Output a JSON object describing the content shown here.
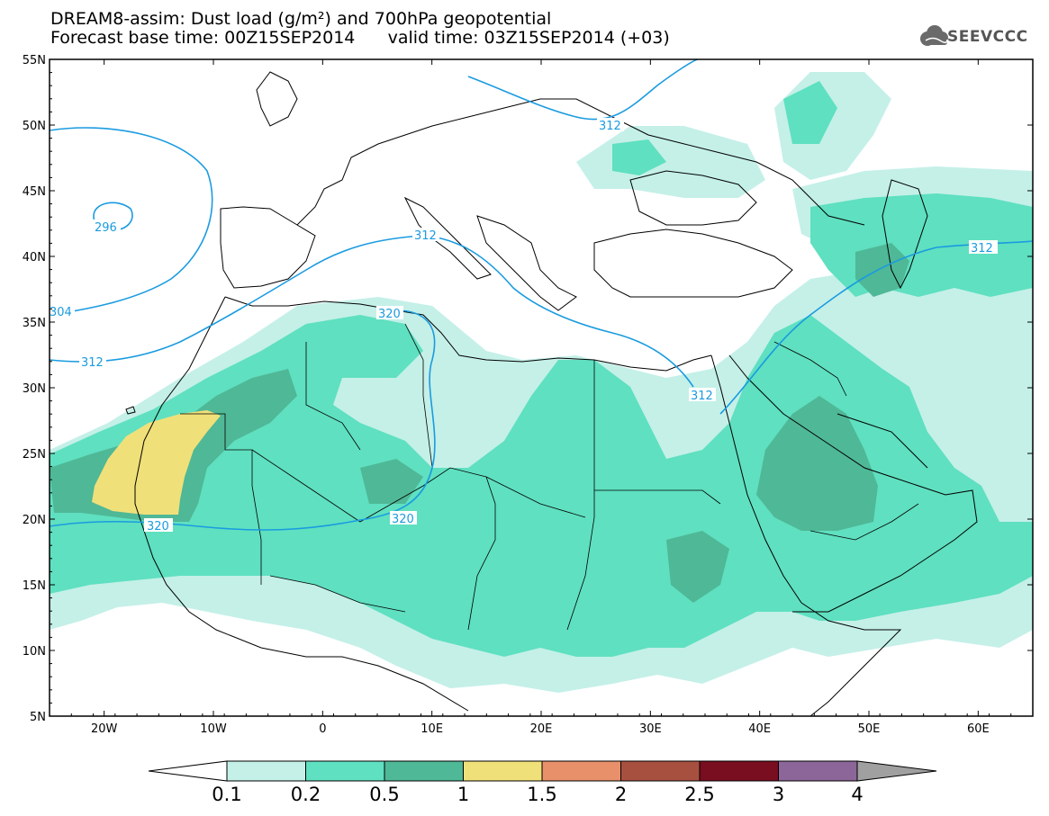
{
  "header": {
    "title_line1": "DREAM8-assim: Dust load (g/m²) and 700hPa geopotential",
    "title_line2_left": "Forecast base time: 00Z15SEP2014",
    "title_line2_right": "valid time: 03Z15SEP2014 (+03)",
    "logo_text": "SEEVCCC",
    "logo_icon": "cloud-logo-icon"
  },
  "map": {
    "projection": "lat-lon",
    "lon_range": [
      -25,
      65
    ],
    "lat_range": [
      5,
      55
    ],
    "lat_labels": [
      "55N",
      "50N",
      "45N",
      "40N",
      "35N",
      "30N",
      "25N",
      "20N",
      "15N",
      "10N",
      "5N"
    ],
    "lon_labels": [
      "20W",
      "10W",
      "0",
      "10E",
      "20E",
      "30E",
      "40E",
      "50E",
      "60E"
    ],
    "contour_color": "#1a9be0",
    "contour_labels": [
      "296",
      "304",
      "312",
      "312",
      "312",
      "312",
      "312",
      "320",
      "320",
      "320"
    ]
  },
  "colorbar": {
    "colors": [
      "#c4f0e8",
      "#5fe0c0",
      "#4fb896",
      "#f0e07a",
      "#e8906a",
      "#a85040",
      "#780e20",
      "#8c6698"
    ],
    "labels": [
      "0.1",
      "0.2",
      "0.5",
      "1",
      "1.5",
      "2",
      "2.5",
      "3",
      "4"
    ],
    "under_color": "#ffffff",
    "over_color": "#a0a0a0"
  }
}
